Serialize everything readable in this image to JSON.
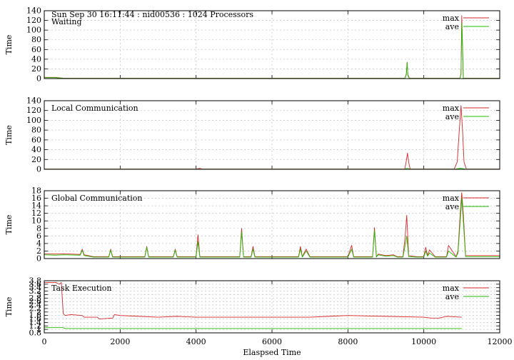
{
  "chart_data": {
    "type": "line",
    "header": "Sun Sep 30 16:11:44 : nid00536 : 1024 Processors",
    "xlabel": "Elaspsed Time",
    "xlim": [
      0,
      12000
    ],
    "xticks": [
      0,
      2000,
      4000,
      6000,
      8000,
      10000,
      12000
    ],
    "grid": true,
    "legend_placement": "top-right",
    "series_colors": {
      "max": "#d62728",
      "ave": "#22bb00"
    },
    "panels": [
      {
        "title": "Waiting",
        "ylabel": "Time",
        "ylim": [
          0,
          140
        ],
        "yticks": [
          0,
          20,
          40,
          60,
          80,
          100,
          120,
          140
        ],
        "series": [
          {
            "name": "max",
            "x": [
              0,
              300,
              500,
              1000,
              2000,
              3000,
              4000,
              5000,
              6000,
              7000,
              8000,
              9000,
              9500,
              9540,
              9560,
              9580,
              9620,
              10000,
              10500,
              10950,
              10980,
              11000,
              11020,
              11040,
              11100,
              11500,
              12000
            ],
            "y": [
              2.5,
              2.5,
              0.8,
              0.6,
              0.6,
              0.6,
              0.6,
              0.6,
              0.6,
              0.6,
              0.6,
              0.6,
              0.6,
              10,
              33,
              8,
              0.6,
              0.6,
              0.6,
              0.6,
              10,
              130,
              60,
              1,
              0.6,
              0.6,
              0.6
            ]
          },
          {
            "name": "ave",
            "x": [
              0,
              300,
              500,
              1000,
              2000,
              3000,
              4000,
              5000,
              6000,
              7000,
              8000,
              9000,
              9500,
              9540,
              9560,
              9580,
              9620,
              10000,
              10500,
              10950,
              10980,
              11000,
              11020,
              11040,
              11100,
              11500,
              12000
            ],
            "y": [
              2,
              2,
              0.5,
              0.4,
              0.4,
              0.4,
              0.4,
              0.4,
              0.4,
              0.4,
              0.4,
              0.4,
              0.4,
              8,
              34,
              6,
              0.4,
              0.4,
              0.4,
              0.4,
              8,
              115,
              70,
              1,
              0.4,
              0.4,
              0.4
            ]
          }
        ]
      },
      {
        "title": "Local Communication",
        "ylabel": "Time",
        "ylim": [
          0,
          140
        ],
        "yticks": [
          0,
          20,
          40,
          60,
          80,
          100,
          120,
          140
        ],
        "series": [
          {
            "name": "max",
            "x": [
              0,
              2000,
              4000,
              4100,
              4150,
              6000,
              8000,
              9500,
              9540,
              9570,
              9600,
              9640,
              10000,
              10500,
              10800,
              10880,
              10940,
              10980,
              11020,
              11060,
              11120,
              11200,
              12000
            ],
            "y": [
              0.5,
              0.5,
              0.5,
              2,
              0.5,
              0.5,
              0.5,
              0.5,
              18,
              33,
              15,
              0.5,
              0.5,
              0.5,
              0.5,
              15,
              85,
              130,
              80,
              15,
              0.5,
              0.5,
              0.5
            ]
          },
          {
            "name": "ave",
            "x": [
              0,
              2000,
              4000,
              6000,
              8000,
              9500,
              9570,
              9640,
              10000,
              10800,
              10980,
              11100,
              12000
            ],
            "y": [
              0.2,
              0.2,
              0.2,
              0.2,
              0.2,
              0.2,
              2,
              0.2,
              0.2,
              0.2,
              2,
              0.2,
              0.2
            ]
          }
        ]
      },
      {
        "title": "Global Communication",
        "ylabel": "Time",
        "ylim": [
          0,
          18
        ],
        "yticks": [
          0,
          2,
          4,
          6,
          8,
          10,
          12,
          14,
          16,
          18
        ],
        "series": [
          {
            "name": "max",
            "x": [
              0,
              300,
              500,
              950,
              1000,
              1050,
              1300,
              1700,
              1750,
              1800,
              2000,
              2650,
              2700,
              2750,
              3000,
              3400,
              3450,
              3500,
              3700,
              4000,
              4050,
              4100,
              4500,
              5000,
              5150,
              5200,
              5250,
              5450,
              5500,
              5550,
              6000,
              6700,
              6750,
              6800,
              6900,
              7000,
              7500,
              8000,
              8100,
              8150,
              8500,
              8650,
              8700,
              8750,
              8800,
              9000,
              9200,
              9300,
              9450,
              9510,
              9550,
              9600,
              9800,
              10000,
              10050,
              10100,
              10150,
              10300,
              10500,
              10600,
              10650,
              10850,
              10900,
              10960,
              11000,
              11040,
              11100,
              11500,
              12000
            ],
            "y": [
              1.3,
              1.2,
              1.3,
              1.1,
              2.5,
              1,
              0.5,
              0.5,
              2.5,
              0.5,
              0.5,
              0.5,
              3.2,
              0.5,
              0.5,
              0.5,
              2.5,
              0.5,
              0.5,
              0.5,
              6.3,
              0.5,
              0.5,
              0.5,
              0.5,
              8,
              0.5,
              0.5,
              3.2,
              0.5,
              0.5,
              0.5,
              3.2,
              0.5,
              2.5,
              0.5,
              0.5,
              0.5,
              3.5,
              0.5,
              0.5,
              0.5,
              8.2,
              0.5,
              1.2,
              0.8,
              1,
              0.5,
              0.5,
              6,
              11.5,
              0.8,
              0.5,
              0.5,
              3,
              0.8,
              2.3,
              0.5,
              0.5,
              0.5,
              3.5,
              0.5,
              2,
              12,
              17.5,
              12,
              0.8,
              0.8,
              0.8
            ]
          },
          {
            "name": "ave",
            "x": [
              0,
              300,
              500,
              950,
              1000,
              1050,
              1300,
              1700,
              1750,
              1800,
              2000,
              2650,
              2700,
              2750,
              3000,
              3400,
              3450,
              3500,
              3700,
              4000,
              4050,
              4100,
              4500,
              5000,
              5150,
              5200,
              5250,
              5450,
              5500,
              5550,
              6000,
              6700,
              6750,
              6800,
              6900,
              7000,
              7500,
              8000,
              8100,
              8150,
              8500,
              8650,
              8700,
              8750,
              8800,
              9000,
              9200,
              9300,
              9450,
              9510,
              9550,
              9600,
              9800,
              10000,
              10050,
              10100,
              10150,
              10300,
              10500,
              10600,
              10650,
              10850,
              10900,
              10960,
              11000,
              11040,
              11100,
              11500,
              12000
            ],
            "y": [
              1,
              0.9,
              1,
              0.9,
              2.2,
              0.8,
              0.4,
              0.4,
              2.2,
              0.4,
              0.4,
              0.4,
              3,
              0.4,
              0.4,
              0.4,
              2.2,
              0.4,
              0.4,
              0.4,
              4.5,
              0.4,
              0.4,
              0.4,
              0.4,
              7,
              0.4,
              0.4,
              2.5,
              0.4,
              0.4,
              0.4,
              2.5,
              0.4,
              2,
              0.4,
              0.4,
              0.4,
              2.5,
              0.4,
              0.4,
              0.4,
              7.5,
              0.4,
              1,
              0.6,
              0.8,
              0.4,
              0.4,
              3.5,
              6,
              0.5,
              0.4,
              0.4,
              2,
              0.6,
              1.5,
              0.4,
              0.4,
              0.4,
              2,
              0.4,
              1.5,
              10,
              16,
              10,
              0.5,
              0.5,
              0.5
            ]
          }
        ]
      },
      {
        "title": "Task Execution",
        "ylabel": "Time",
        "ylim": [
          0.8,
          3.8
        ],
        "yticks": [
          0.8,
          1,
          1.2,
          1.4,
          1.6,
          1.8,
          2,
          2.2,
          2.4,
          2.6,
          2.8,
          3,
          3.2,
          3.4,
          3.6,
          3.8
        ],
        "ytick_labels": [
          "0.8",
          "1",
          "1.2",
          "1.4",
          "1.6",
          "1.8",
          "2",
          "2.2",
          "2.4",
          "2.6",
          "2.8",
          "3",
          "3.2",
          "3.4",
          "3.6",
          "3.8"
        ],
        "series": [
          {
            "name": "max",
            "x": [
              0,
              300,
              400,
              450,
              500,
              550,
              700,
              1000,
              1050,
              1400,
              1450,
              1800,
              1850,
              2000,
              2500,
              3000,
              3500,
              4000,
              5000,
              6000,
              7000,
              7500,
              8000,
              9000,
              10000,
              10200,
              10400,
              10600,
              11000
            ],
            "y": [
              3.7,
              3.7,
              3.6,
              3.7,
              1.9,
              1.8,
              1.85,
              1.8,
              1.7,
              1.7,
              1.6,
              1.65,
              1.85,
              1.8,
              1.75,
              1.7,
              1.75,
              1.7,
              1.7,
              1.7,
              1.7,
              1.75,
              1.8,
              1.75,
              1.7,
              1.65,
              1.65,
              1.75,
              1.7
            ]
          },
          {
            "name": "ave",
            "x": [
              0,
              500,
              550,
              1000,
              2000,
              3000,
              4000,
              5000,
              6000,
              7000,
              8000,
              9000,
              10000,
              10500,
              11000
            ],
            "y": [
              1.1,
              1.1,
              1.05,
              1.05,
              1.05,
              1.05,
              1.05,
              1.05,
              1.05,
              1.05,
              1.05,
              1.05,
              1.05,
              1.05,
              1.05
            ]
          }
        ]
      }
    ]
  }
}
